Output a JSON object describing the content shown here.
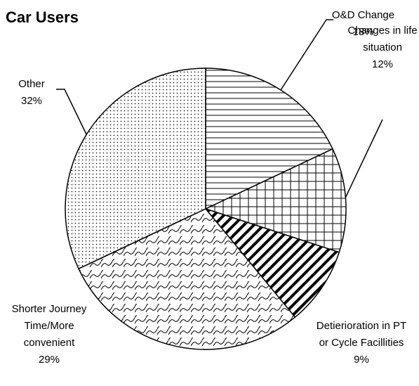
{
  "chart_data": {
    "type": "pie",
    "title": "Car Users",
    "categories": [
      "O&D Change",
      "Changes in life situation",
      "Detierioration in PT or Cycle Facillities",
      "Shorter Journey Time/More convenient",
      "Other"
    ],
    "values": [
      18,
      12,
      9,
      29,
      32
    ],
    "value_labels": [
      "18%",
      "12%",
      "9%",
      "29%",
      "32%"
    ]
  }
}
